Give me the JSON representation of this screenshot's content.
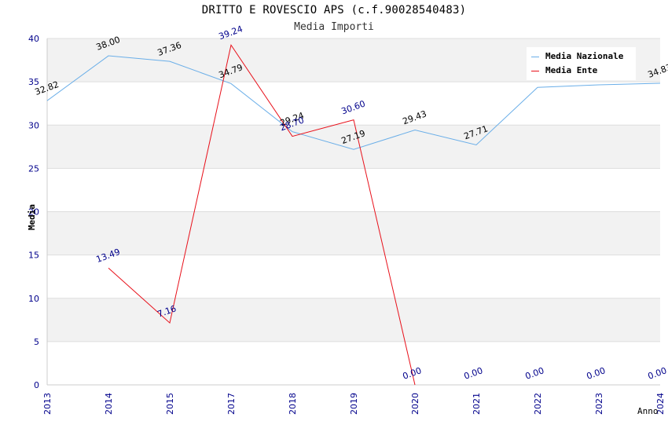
{
  "header": {
    "title": "DRITTO E ROVESCIO APS (c.f.90028540483)",
    "subtitle": "Media Importi"
  },
  "chart_data": {
    "type": "line",
    "title": "DRITTO E ROVESCIO APS (c.f.90028540483)",
    "subtitle": "Media Importi",
    "xlabel": "Anno",
    "ylabel": "Media",
    "categories": [
      "2013",
      "2014",
      "2015",
      "2017",
      "2018",
      "2019",
      "2020",
      "2021",
      "2022",
      "2023",
      "2024"
    ],
    "ylim": [
      0,
      40
    ],
    "yticks": [
      "0",
      "5",
      "10",
      "15",
      "20",
      "25",
      "30",
      "35",
      "40"
    ],
    "legend_position": "top-right",
    "series": [
      {
        "name": "Media Nazionale",
        "color": "#6aaee8",
        "values": [
          32.82,
          38.0,
          37.36,
          34.79,
          29.24,
          27.19,
          29.43,
          27.71,
          34.35,
          34.65,
          34.83
        ],
        "labels": [
          "32.82",
          "38.00",
          "37.36",
          "34.79",
          "29.24",
          "27.19",
          "29.43",
          "27.71",
          "",
          "",
          "34.83"
        ],
        "label_color": "#000000"
      },
      {
        "name": "Media Ente",
        "color": "#e8101a",
        "values": [
          null,
          13.49,
          7.16,
          39.24,
          28.7,
          30.6,
          0.0,
          null,
          null,
          null,
          null
        ],
        "labels": [
          "",
          "13.49",
          "7.16",
          "39.24",
          "28.70",
          "30.60",
          "0.00",
          "0.00",
          "0.00",
          "0.00",
          "0.00"
        ],
        "label_color": "#00008b"
      }
    ],
    "colors": {
      "band": "#f2f2f2",
      "grid": "#dddddd",
      "axis_tick": "#00008b"
    }
  }
}
